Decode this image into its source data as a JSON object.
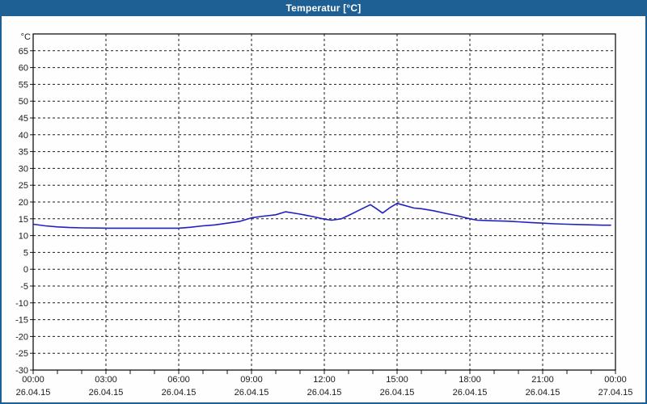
{
  "window": {
    "title": "Temperatur [°C]",
    "title_bar_color": "#1E6094",
    "border_color": "#1E6094",
    "background_color": "#FDFEFD"
  },
  "chart_data": {
    "type": "line",
    "title": "Temperatur [°C]",
    "y_unit_label": "°C",
    "ylabel": "",
    "xlabel": "",
    "ylim": [
      -30,
      70
    ],
    "y_tick_step": 5,
    "y_tick_labels": [
      65,
      60,
      55,
      50,
      45,
      40,
      35,
      30,
      25,
      20,
      15,
      10,
      5,
      0,
      -5,
      -10,
      -15,
      -20,
      -25,
      -30
    ],
    "x_range_hours": [
      0,
      24
    ],
    "x_minor_tick_hours": 1,
    "x_major_ticks": [
      {
        "hour": 0,
        "time": "00:00",
        "date": "26.04.15"
      },
      {
        "hour": 3,
        "time": "03:00",
        "date": "26.04.15"
      },
      {
        "hour": 6,
        "time": "06:00",
        "date": "26.04.15"
      },
      {
        "hour": 9,
        "time": "09:00",
        "date": "26.04.15"
      },
      {
        "hour": 12,
        "time": "12:00",
        "date": "26.04.15"
      },
      {
        "hour": 15,
        "time": "15:00",
        "date": "26.04.15"
      },
      {
        "hour": 18,
        "time": "18:00",
        "date": "26.04.15"
      },
      {
        "hour": 21,
        "time": "21:00",
        "date": "26.04.15"
      },
      {
        "hour": 24,
        "time": "00:00",
        "date": "27.04.15"
      }
    ],
    "grid": "dashed-black",
    "legend": "none",
    "line_color": "#2121C0",
    "series": [
      {
        "name": "Temperatur",
        "points": [
          [
            0.0,
            13.4
          ],
          [
            0.5,
            12.9
          ],
          [
            1.0,
            12.6
          ],
          [
            1.5,
            12.4
          ],
          [
            2.0,
            12.3
          ],
          [
            3.0,
            12.2
          ],
          [
            4.0,
            12.2
          ],
          [
            5.0,
            12.2
          ],
          [
            6.0,
            12.2
          ],
          [
            6.5,
            12.5
          ],
          [
            7.0,
            12.9
          ],
          [
            7.5,
            13.2
          ],
          [
            8.0,
            13.7
          ],
          [
            8.5,
            14.2
          ],
          [
            9.0,
            15.3
          ],
          [
            9.5,
            15.8
          ],
          [
            10.0,
            16.2
          ],
          [
            10.4,
            17.1
          ],
          [
            11.0,
            16.4
          ],
          [
            11.5,
            15.7
          ],
          [
            12.0,
            14.9
          ],
          [
            12.3,
            14.6
          ],
          [
            12.7,
            15.0
          ],
          [
            13.0,
            16.0
          ],
          [
            13.5,
            17.8
          ],
          [
            13.9,
            19.2
          ],
          [
            14.15,
            18.0
          ],
          [
            14.4,
            16.7
          ],
          [
            14.7,
            18.3
          ],
          [
            15.0,
            19.6
          ],
          [
            15.3,
            19.0
          ],
          [
            15.7,
            18.2
          ],
          [
            16.0,
            18.0
          ],
          [
            16.5,
            17.4
          ],
          [
            17.0,
            16.6
          ],
          [
            17.5,
            15.9
          ],
          [
            18.0,
            15.0
          ],
          [
            18.3,
            14.6
          ],
          [
            19.0,
            14.4
          ],
          [
            19.5,
            14.3
          ],
          [
            20.0,
            14.1
          ],
          [
            20.5,
            13.9
          ],
          [
            21.0,
            13.7
          ],
          [
            21.5,
            13.5
          ],
          [
            22.0,
            13.4
          ],
          [
            22.5,
            13.3
          ],
          [
            23.0,
            13.2
          ],
          [
            23.5,
            13.1
          ],
          [
            23.8,
            13.1
          ]
        ]
      }
    ]
  }
}
